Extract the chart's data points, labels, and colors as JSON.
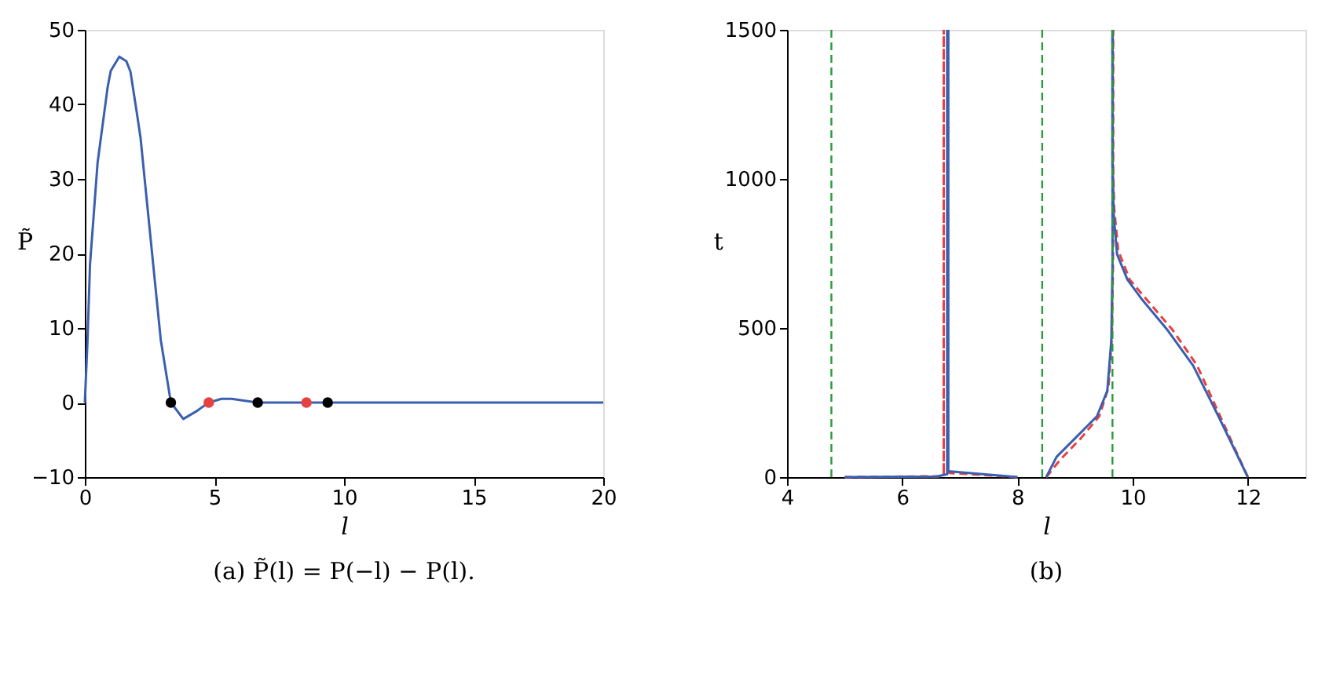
{
  "chart_data": [
    {
      "type": "line",
      "title": "(a) P̃(l) = P(−l) − P(l).",
      "xlabel": "l",
      "ylabel": "P̃",
      "xlim": [
        0,
        20
      ],
      "xticks": [
        0,
        5,
        10,
        15,
        20
      ],
      "ylim": [
        -10,
        50
      ],
      "yticks": [
        -10,
        0,
        10,
        20,
        30,
        40,
        50
      ],
      "grid": false,
      "legend": false,
      "series": [
        {
          "type": "line",
          "color": "#3a5fb0",
          "x": [
            0,
            0.1,
            0.2,
            0.49,
            0.88,
            1.0,
            1.33,
            1.6,
            1.76,
            2.0,
            2.15,
            2.54,
            2.93,
            3.32,
            3.8,
            4.29,
            4.78,
            5.27,
            5.66,
            6.24,
            6.67,
            8,
            10,
            20
          ],
          "values": [
            0,
            8,
            18.5,
            32.1,
            42.3,
            44.5,
            46.4,
            45.8,
            44.4,
            39,
            35.5,
            21.9,
            8.4,
            0,
            -2.2,
            -1.2,
            0,
            0.5,
            0.5,
            0.2,
            0,
            0,
            0,
            0
          ]
        },
        {
          "type": "scatter",
          "marker": "circle",
          "color": "#000000",
          "x": [
            3.32,
            6.67,
            9.37
          ],
          "values": [
            0,
            0,
            0
          ]
        },
        {
          "type": "scatter",
          "marker": "circle",
          "color": "#e84040",
          "x": [
            4.78,
            8.55
          ],
          "values": [
            0,
            0
          ]
        }
      ]
    },
    {
      "type": "line",
      "title": "(b)",
      "xlabel": "l",
      "ylabel": "t",
      "xlim": [
        4,
        13
      ],
      "xticks": [
        4,
        6,
        8,
        10,
        12
      ],
      "ylim": [
        0,
        1500
      ],
      "yticks": [
        0,
        500,
        1000,
        1500
      ],
      "grid": false,
      "legend": false,
      "ref_lines": [
        {
          "axis": "x",
          "value": 4.77,
          "color": "#2a9a3a",
          "line_style": "dashed"
        },
        {
          "axis": "x",
          "value": 8.43,
          "color": "#2a9a3a",
          "line_style": "dashed"
        },
        {
          "axis": "x",
          "value": 9.65,
          "color": "#2a9a3a",
          "line_style": "dashed"
        }
      ],
      "series": [
        {
          "type": "line",
          "line_style": "dashed",
          "color": "#e84040",
          "x": [
            5,
            6.7,
            6.72,
            6.72
          ],
          "values": [
            0,
            3,
            10,
            1500
          ]
        },
        {
          "type": "line",
          "line_style": "dashed",
          "color": "#e84040",
          "x": [
            8,
            6.72,
            6.72
          ],
          "values": [
            0,
            15,
            1500
          ]
        },
        {
          "type": "line",
          "line_style": "dashed",
          "color": "#e84040",
          "x": [
            8.5,
            8.75,
            9.1,
            9.42,
            9.58,
            9.64,
            9.66,
            9.66
          ],
          "values": [
            0,
            60,
            130,
            204,
            300,
            470,
            720,
            1500
          ]
        },
        {
          "type": "line",
          "line_style": "dashed",
          "color": "#e84040",
          "x": [
            12,
            11.52,
            11.12,
            10.7,
            10.25,
            9.95,
            9.75,
            9.68,
            9.66,
            9.66
          ],
          "values": [
            0,
            204,
            374,
            492,
            594,
            662,
            760,
            900,
            1050,
            1500
          ]
        },
        {
          "type": "line",
          "line_style": "solid",
          "color": "#3a5fb0",
          "x": [
            5,
            6.6,
            6.78,
            6.78
          ],
          "values": [
            0,
            2,
            10,
            1500
          ]
        },
        {
          "type": "line",
          "line_style": "solid",
          "color": "#3a5fb0",
          "x": [
            8,
            6.8,
            6.8
          ],
          "values": [
            0,
            20,
            1500
          ]
        },
        {
          "type": "line",
          "line_style": "solid",
          "color": "#3a5fb0",
          "x": [
            8.5,
            8.68,
            9.03,
            9.38,
            9.56,
            9.63,
            9.65,
            9.65
          ],
          "values": [
            0,
            68,
            136,
            204,
            289,
            458,
            713,
            1500
          ]
        },
        {
          "type": "line",
          "line_style": "solid",
          "color": "#3a5fb0",
          "x": [
            12,
            11.49,
            11.05,
            10.61,
            10.17,
            9.91,
            9.73,
            9.67,
            9.65,
            9.65
          ],
          "values": [
            0,
            204,
            374,
            492,
            594,
            662,
            747,
            883,
            1053,
            1500
          ]
        }
      ]
    }
  ]
}
